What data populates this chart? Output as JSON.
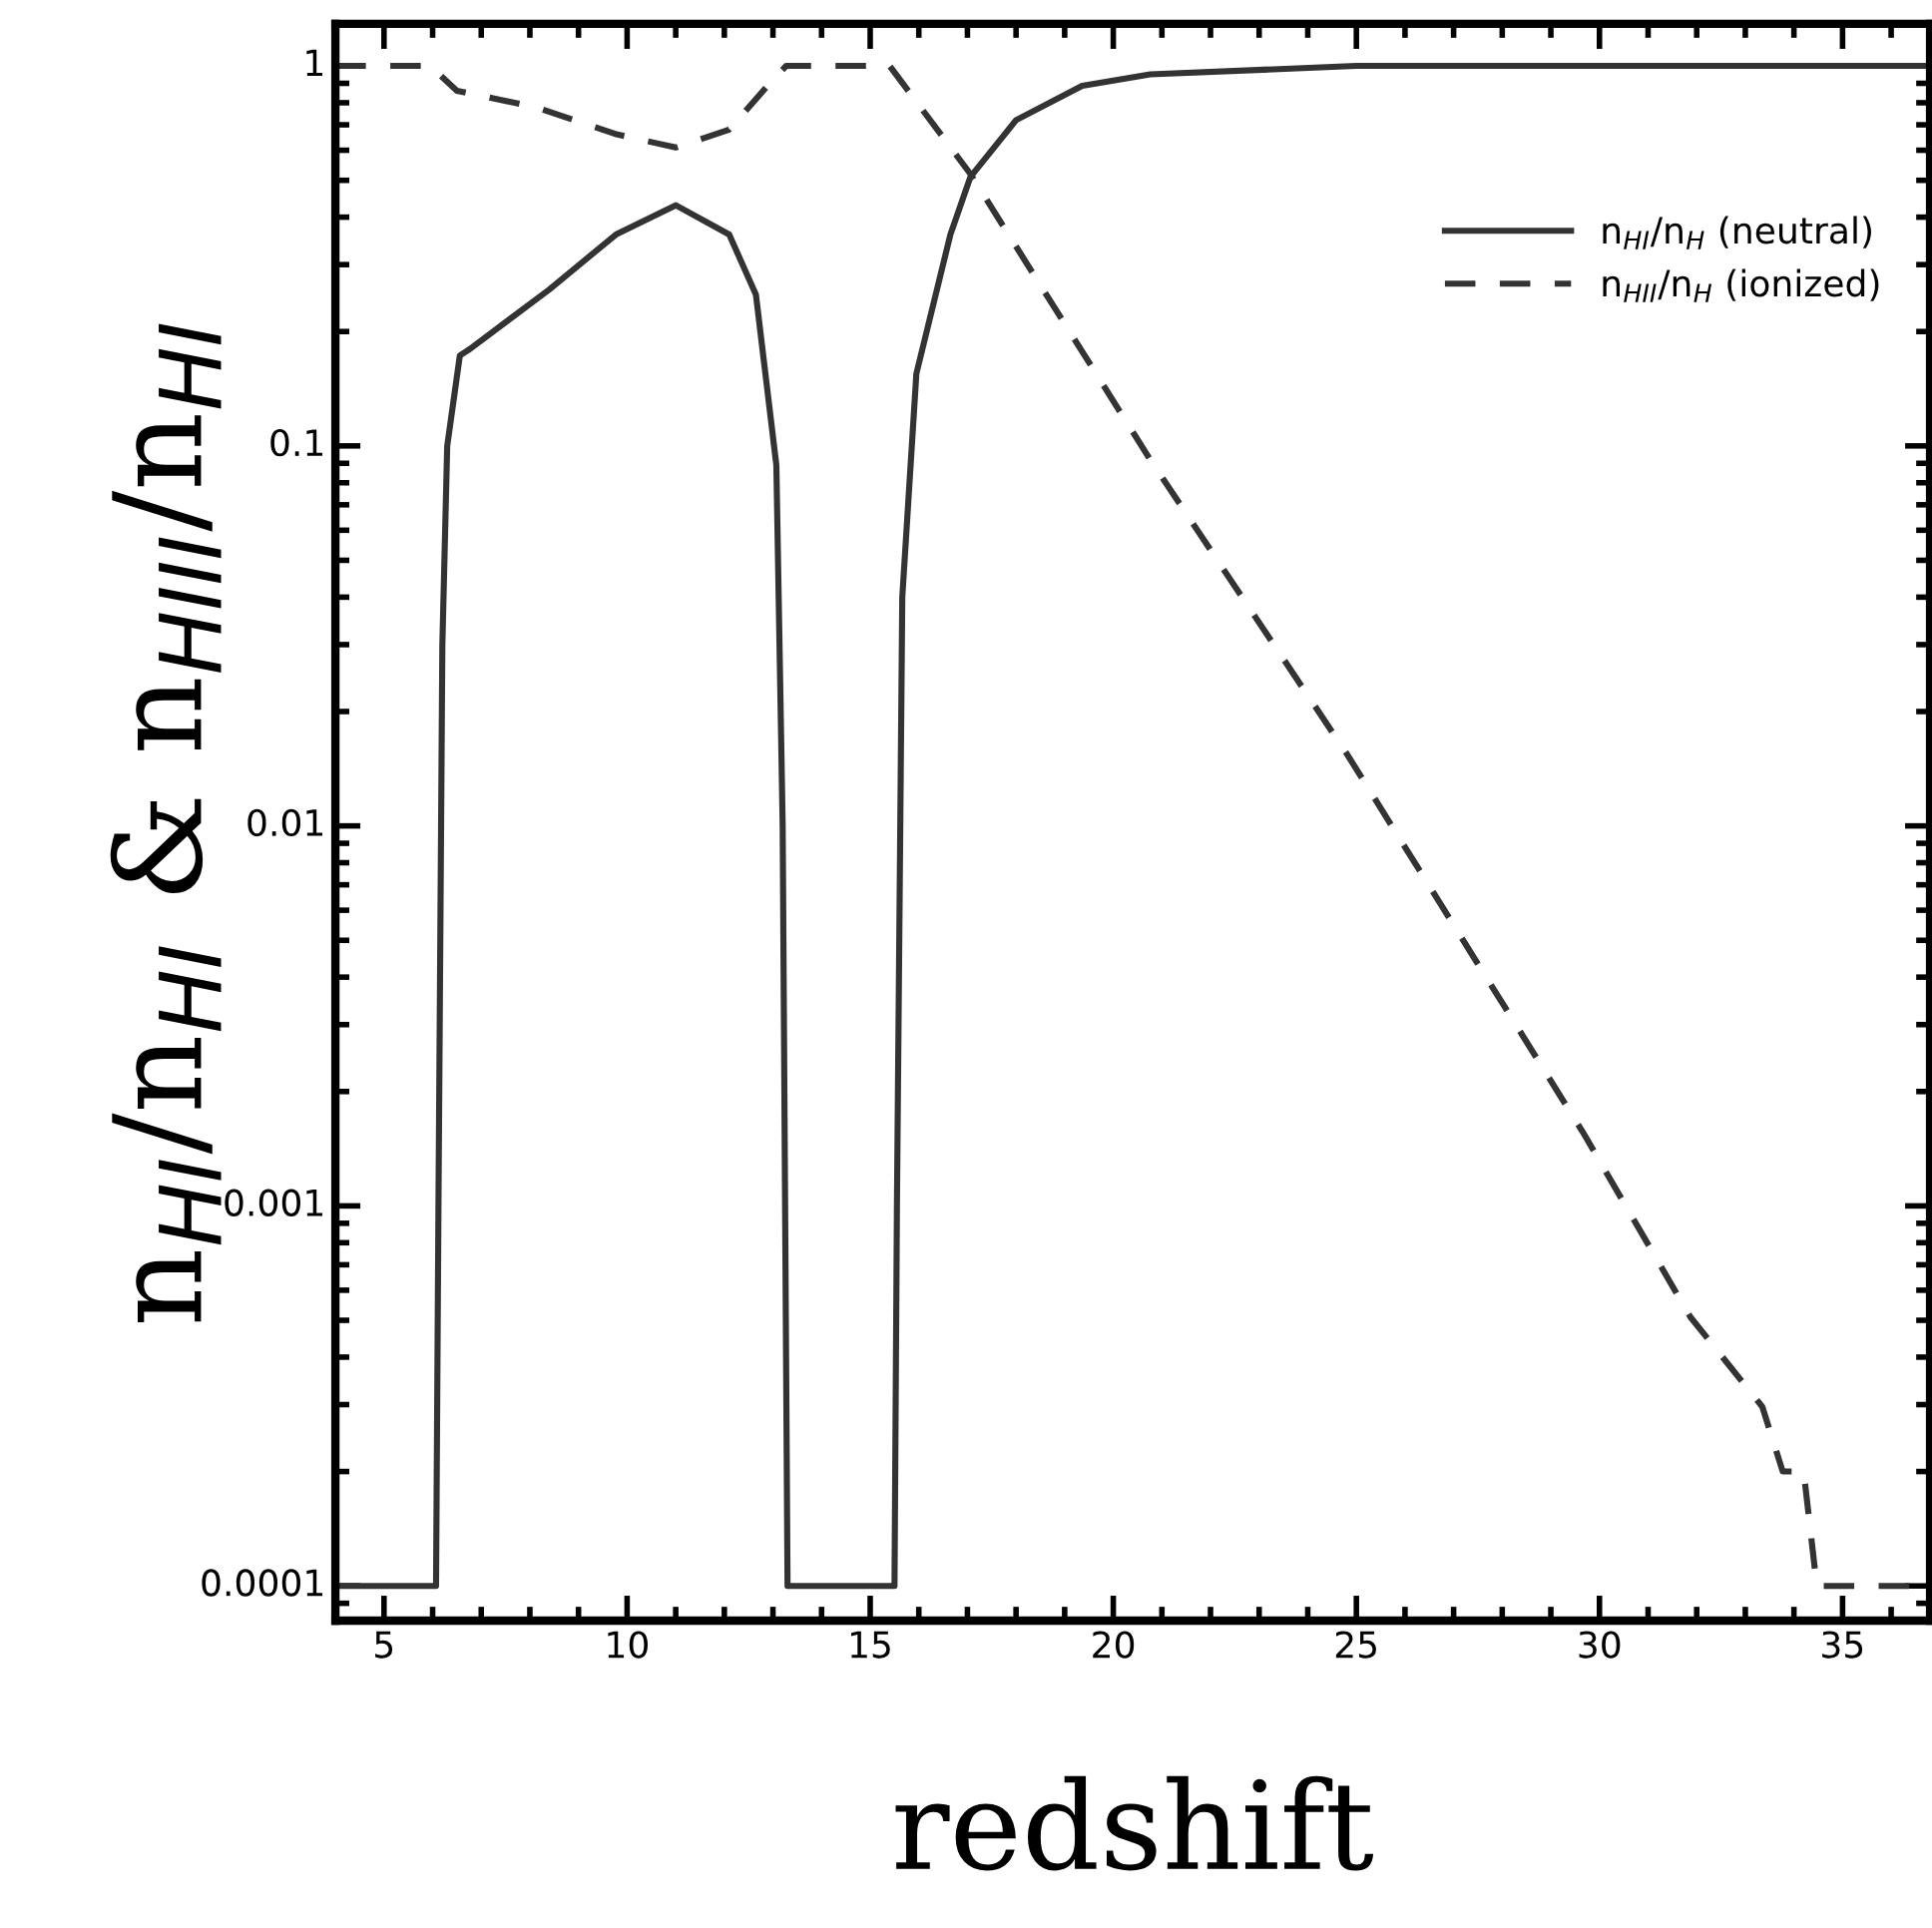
{
  "chart_data": {
    "type": "line",
    "xlabel": "redshift",
    "ylabel": "n$_{HI}$/n$_{HI}$ & n$_{HIII}$/n$_{HI}$",
    "log": "y",
    "xlim": [
      4,
      36.8
    ],
    "ylim": [
      8.1e-05,
      1.29
    ],
    "xticks": [
      5,
      10,
      15,
      20,
      25,
      30,
      35
    ],
    "yticks": [
      {
        "value": 1,
        "label": "1"
      },
      {
        "value": 0.1,
        "label": "0.1"
      },
      {
        "value": 0.01,
        "label": "0.01"
      },
      {
        "value": 0.001,
        "label": "0.001"
      },
      {
        "value": 0.0001,
        "label": "0.0001"
      }
    ],
    "legend": "top right",
    "series": [
      {
        "name": "n$_{HI}$/n$_{H}$ (neutral)",
        "color": "#333333",
        "line_style": "solid",
        "x": [
          4,
          6.07,
          6.12,
          6.2,
          6.3,
          6.56,
          6.77,
          8.4,
          9.77,
          11.0,
          12.1,
          12.65,
          13.07,
          13.2,
          13.3,
          15.5,
          15.55,
          15.66,
          15.95,
          16.65,
          17.06,
          18.0,
          19.36,
          20.76,
          25,
          36.8
        ],
        "values": [
          0.0001,
          0.0001,
          0.001,
          0.03,
          0.1,
          0.173,
          0.18,
          0.258,
          0.36,
          0.43,
          0.36,
          0.25,
          0.089,
          0.01,
          0.0001,
          0.0001,
          0.001,
          0.04,
          0.155,
          0.36,
          0.51,
          0.72,
          0.886,
          0.95,
          1.0,
          1.0
        ]
      },
      {
        "name": "n$_{HII}$/n$_{H}$ (ionized)",
        "color": "#333333",
        "line_style": "dashed",
        "x": [
          4,
          5.04,
          5.95,
          6.5,
          8.1,
          9.8,
          11.0,
          12.1,
          12.9,
          13.27,
          15.4,
          17.06,
          20.76,
          24.8,
          29.65,
          31.87,
          33.35,
          33.77,
          34.2,
          34.47,
          36.8
        ],
        "values": [
          1.0,
          1.0,
          1.0,
          0.86,
          0.78,
          0.66,
          0.61,
          0.68,
          0.89,
          1.0,
          1.0,
          0.52,
          0.092,
          0.0155,
          0.00157,
          0.00051,
          0.000296,
          0.0002,
          0.0002,
          0.0001,
          0.0001
        ]
      }
    ]
  }
}
